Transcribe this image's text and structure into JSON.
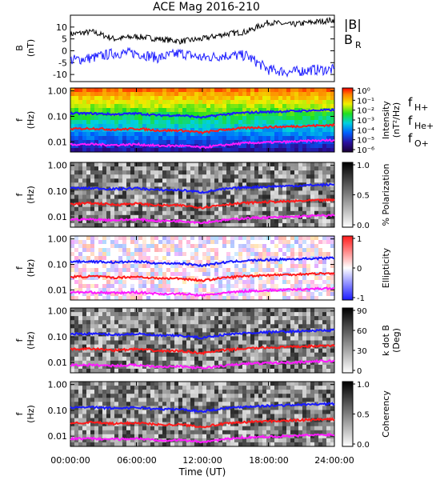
{
  "title": "ACE Mag 2016-210",
  "colors": {
    "magnitude": "#000000",
    "br": "#2020ff",
    "h_plus": "#1a1aff",
    "he_plus": "#ff1a1a",
    "o_plus": "#ff1aff"
  },
  "panel1": {
    "ylabel": "B",
    "yunit": "(nT)",
    "yticks": [
      "10",
      "5",
      "0",
      "-5",
      "-10"
    ],
    "legend": {
      "mag": "|B|",
      "br": "B",
      "br_sub": "R"
    }
  },
  "spectral_panels": {
    "ylabel": "f",
    "yunit": "(Hz)",
    "yticks": [
      "1.00",
      "0.10",
      "0.01"
    ],
    "panel2": {
      "colorbar_label": "Intensity",
      "colorbar_unit": "(nT²/Hz)",
      "colorbar_ticks": [
        "10⁰",
        "10⁻¹",
        "10⁻²",
        "10⁻³",
        "10⁻⁴",
        "10⁻⁵",
        "10⁻⁶"
      ],
      "legend": [
        {
          "base": "f",
          "sub": "H+"
        },
        {
          "base": "f",
          "sub": "He+"
        },
        {
          "base": "f",
          "sub": "O+"
        }
      ]
    },
    "panel3": {
      "colorbar_label": "% Polarization",
      "colorbar_ticks": [
        "1.0",
        "0.5",
        "0.0"
      ]
    },
    "panel4": {
      "colorbar_label": "Ellipticity",
      "colorbar_ticks": [
        "1",
        "0",
        "-1"
      ]
    },
    "panel5": {
      "colorbar_label": "k dot B",
      "colorbar_unit": "(Deg)",
      "colorbar_ticks": [
        "90",
        "60",
        "30",
        "0"
      ]
    },
    "panel6": {
      "colorbar_label": "Coherency",
      "colorbar_ticks": [
        "1.0",
        "0.5",
        "0.0"
      ]
    }
  },
  "xaxis": {
    "label": "Time (UT)",
    "ticks": [
      "00:00:00",
      "06:00:00",
      "12:00:00",
      "18:00:00",
      "24:00:00"
    ]
  },
  "chart_data": [
    {
      "type": "line",
      "title": "ACE Mag 2016-210",
      "ylabel": "B (nT)",
      "xlabel": "Time (UT)",
      "ylim": [
        -13,
        15
      ],
      "x": [
        0,
        2,
        4,
        6,
        8,
        10,
        12,
        14,
        16,
        18,
        20,
        22,
        24
      ],
      "series": [
        {
          "name": "|B|",
          "values": [
            7,
            8,
            5,
            6,
            5,
            4,
            5,
            7,
            8,
            12,
            11,
            12,
            13
          ]
        },
        {
          "name": "B",
          "values": [
            -4,
            -3,
            -1,
            -1,
            -3,
            -1,
            -3,
            -2,
            -2,
            -8,
            -9,
            -8,
            -8
          ]
        }
      ]
    },
    {
      "type": "heatmap",
      "ylabel": "f (Hz)",
      "xlabel": "Time (UT)",
      "yscale": "log",
      "ylim": [
        0.004,
        1.3
      ],
      "x": [
        0,
        2,
        4,
        6,
        8,
        10,
        12,
        14,
        16,
        18,
        20,
        22,
        24
      ],
      "series": [
        {
          "name": "f",
          "values": [
            0.13,
            0.13,
            0.12,
            0.13,
            0.11,
            0.11,
            0.09,
            0.12,
            0.14,
            0.15,
            0.16,
            0.17,
            0.18
          ]
        },
        {
          "name": "f",
          "values": [
            0.032,
            0.034,
            0.03,
            0.033,
            0.028,
            0.028,
            0.023,
            0.03,
            0.035,
            0.038,
            0.04,
            0.043,
            0.045
          ]
        },
        {
          "name": "f",
          "values": [
            0.008,
            0.008,
            0.0075,
            0.008,
            0.007,
            0.007,
            0.006,
            0.0075,
            0.009,
            0.0095,
            0.01,
            0.011,
            0.0115
          ]
        }
      ]
    }
  ]
}
